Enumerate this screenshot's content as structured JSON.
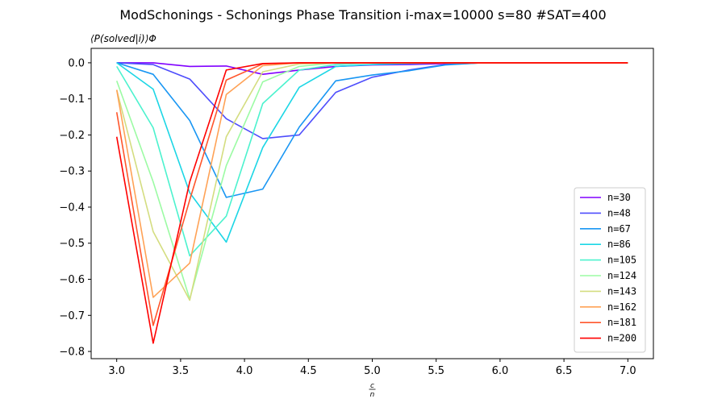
{
  "chart_data": {
    "type": "line",
    "title": "ModSchonings - Schonings Phase Transition  i-max=10000 s=80 #SAT=400",
    "ylabel": "⟨P(solved|i)⟩Φ",
    "xlabel": "c/n",
    "xlim": [
      2.8,
      7.2
    ],
    "ylim": [
      -0.82,
      0.04
    ],
    "xticks": [
      "3.0",
      "3.5",
      "4.0",
      "4.5",
      "5.0",
      "5.5",
      "6.0",
      "6.5",
      "7.0"
    ],
    "yticks": [
      "0.0",
      "−0.1",
      "−0.2",
      "−0.3",
      "−0.4",
      "−0.5",
      "−0.6",
      "−0.7",
      "−0.8"
    ],
    "grid": false,
    "legend_position": "lower-right",
    "x": [
      3.0,
      3.2857,
      3.5714,
      3.8571,
      4.1429,
      4.4286,
      4.7143,
      5.0,
      5.2857,
      5.5714,
      5.8571,
      6.1429,
      6.4286,
      6.7143,
      7.0
    ],
    "series": [
      {
        "name": "n=30",
        "color": "#8000ff",
        "values": [
          0.0,
          0.0,
          -0.01,
          -0.009,
          -0.032,
          -0.02,
          -0.01,
          -0.006,
          -0.005,
          -0.002,
          0.0,
          0.0,
          0.0,
          0.0,
          0.0
        ]
      },
      {
        "name": "n=48",
        "color": "#4e4dfc",
        "values": [
          0.0,
          -0.005,
          -0.045,
          -0.155,
          -0.21,
          -0.2,
          -0.082,
          -0.04,
          -0.02,
          -0.005,
          0.0,
          0.0,
          0.0,
          0.0,
          0.0
        ]
      },
      {
        "name": "n=67",
        "color": "#1996f3",
        "values": [
          0.0,
          -0.032,
          -0.16,
          -0.373,
          -0.35,
          -0.178,
          -0.05,
          -0.034,
          -0.022,
          -0.006,
          0.0,
          0.0,
          0.0,
          0.0,
          0.0
        ]
      },
      {
        "name": "n=86",
        "color": "#1cd6e5",
        "values": [
          0.0,
          -0.073,
          -0.36,
          -0.497,
          -0.235,
          -0.068,
          -0.01,
          -0.005,
          -0.002,
          0.0,
          0.0,
          0.0,
          0.0,
          0.0,
          0.0
        ]
      },
      {
        "name": "n=105",
        "color": "#4cf2ce",
        "values": [
          -0.01,
          -0.18,
          -0.535,
          -0.425,
          -0.113,
          -0.02,
          -0.005,
          0.0,
          0.0,
          0.0,
          0.0,
          0.0,
          0.0,
          0.0,
          0.0
        ]
      },
      {
        "name": "n=124",
        "color": "#9cfba4",
        "values": [
          -0.05,
          -0.33,
          -0.655,
          -0.285,
          -0.053,
          -0.01,
          0.0,
          0.0,
          0.0,
          0.0,
          0.0,
          0.0,
          0.0,
          0.0,
          0.0
        ]
      },
      {
        "name": "n=143",
        "color": "#d4dd80",
        "values": [
          -0.075,
          -0.468,
          -0.658,
          -0.205,
          -0.025,
          -0.003,
          0.0,
          0.0,
          0.0,
          0.0,
          0.0,
          0.0,
          0.0,
          0.0,
          0.0
        ]
      },
      {
        "name": "n=162",
        "color": "#ffa256",
        "values": [
          -0.075,
          -0.65,
          -0.555,
          -0.088,
          -0.008,
          0.0,
          0.0,
          0.0,
          0.0,
          0.0,
          0.0,
          0.0,
          0.0,
          0.0,
          0.0
        ]
      },
      {
        "name": "n=181",
        "color": "#ff562c",
        "values": [
          -0.137,
          -0.728,
          -0.38,
          -0.048,
          -0.003,
          0.0,
          0.0,
          0.0,
          0.0,
          0.0,
          0.0,
          0.0,
          0.0,
          0.0,
          0.0
        ]
      },
      {
        "name": "n=200",
        "color": "#ff0000",
        "values": [
          -0.205,
          -0.777,
          -0.33,
          -0.02,
          -0.002,
          0.0,
          0.0,
          0.0,
          0.0,
          0.0,
          0.0,
          0.0,
          0.0,
          0.0,
          0.0
        ]
      }
    ]
  }
}
